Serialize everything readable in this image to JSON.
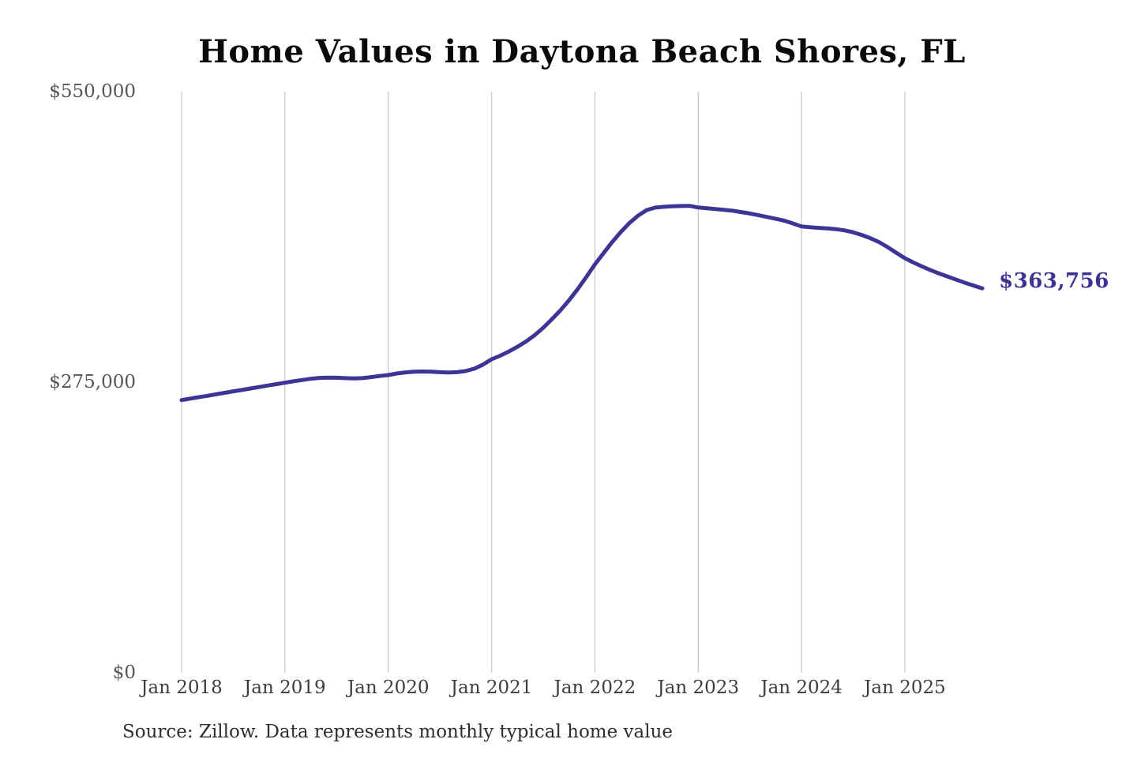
{
  "title": "Home Values in Daytona Beach Shores, FL",
  "source_note": "Source: Zillow. Data represents monthly typical home value",
  "end_label": "$363,756",
  "colors": {
    "line": "#3d3596",
    "end_label": "#3b3391",
    "gridline": "#c9c9c9",
    "y_label": "#565656",
    "x_label": "#3d3d3d",
    "title": "#0a0a0a",
    "source": "#2e2e2e",
    "background": "#ffffff"
  },
  "chart_data": {
    "type": "line",
    "title": "Home Values in Daytona Beach Shores, FL",
    "series_name": "Monthly typical home value",
    "unit": "USD",
    "frequency": "monthly",
    "start_month": "2018-01",
    "end_month": "2025-10",
    "ylim": [
      0,
      550000
    ],
    "grid": "vertical-only",
    "legend": "none",
    "y_ticks": [
      {
        "label": "$550,000",
        "value": 550000
      },
      {
        "label": "$275,000",
        "value": 275000
      },
      {
        "label": "$0",
        "value": 0
      }
    ],
    "x_ticks": [
      {
        "label": "Jan 2018",
        "month_index": 0
      },
      {
        "label": "Jan 2019",
        "month_index": 12
      },
      {
        "label": "Jan 2020",
        "month_index": 24
      },
      {
        "label": "Jan 2021",
        "month_index": 36
      },
      {
        "label": "Jan 2022",
        "month_index": 48
      },
      {
        "label": "Jan 2023",
        "month_index": 60
      },
      {
        "label": "Jan 2024",
        "month_index": 72
      },
      {
        "label": "Jan 2025",
        "month_index": 84
      }
    ],
    "values": [
      258000,
      259400,
      260800,
      262100,
      263500,
      264900,
      266300,
      267600,
      269000,
      270400,
      271800,
      273100,
      274500,
      275800,
      277000,
      278200,
      279000,
      279300,
      279200,
      278800,
      278500,
      278800,
      279800,
      280800,
      281700,
      283200,
      284300,
      284900,
      285100,
      284900,
      284400,
      284100,
      284400,
      285500,
      287800,
      291600,
      296700,
      300000,
      304000,
      308500,
      313500,
      319500,
      326500,
      334500,
      343000,
      352500,
      363000,
      374500,
      386400,
      397000,
      407500,
      417000,
      425500,
      432500,
      437800,
      440200,
      441000,
      441400,
      441700,
      441900,
      440300,
      439600,
      438900,
      438100,
      437200,
      436000,
      434600,
      433000,
      431300,
      429600,
      427800,
      425200,
      422400,
      421600,
      421000,
      420500,
      419800,
      418600,
      416800,
      414300,
      411200,
      407600,
      402800,
      397500,
      392300,
      388200,
      384500,
      381000,
      377800,
      374800,
      371900,
      369000,
      366300,
      363756
    ],
    "final_value": 363756,
    "annotation": {
      "text": "$363,756",
      "position": "line-end"
    }
  }
}
